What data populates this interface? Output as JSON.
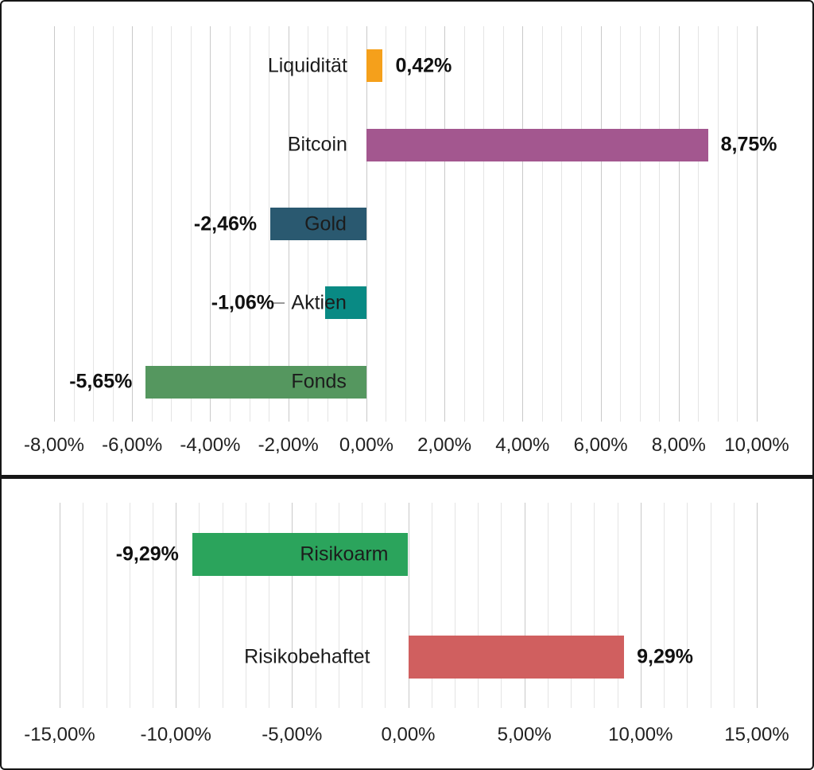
{
  "page": {
    "background": "#FFFFFF",
    "panel_border_color": "#161616",
    "gridline_minor_color": "#E4E4E4",
    "gridline_major_color": "#C9C9C9"
  },
  "chart_data": [
    {
      "type": "bar",
      "orientation": "horizontal",
      "title": "",
      "categories": [
        "Liquidität",
        "Bitcoin",
        "Gold",
        "Aktien",
        "Fonds"
      ],
      "values": [
        0.42,
        8.75,
        -2.46,
        -1.06,
        -5.65
      ],
      "value_labels": [
        "0,42%",
        "8,75%",
        "-2,46%",
        "-1,06%",
        "-5,65%"
      ],
      "bar_colors": [
        "#F5A01B",
        "#A3578F",
        "#2A5970",
        "#098A84",
        "#55975F"
      ],
      "xlim": [
        -8,
        10
      ],
      "x_tick_labels": [
        "-8,00%",
        "-6,00%",
        "-4,00%",
        "-2,00%",
        "0,00%",
        "2,00%",
        "4,00%",
        "6,00%",
        "8,00%",
        "10,00%"
      ],
      "x_major_step": 2,
      "x_minor_step": 0.5,
      "grid": true,
      "legend": false
    },
    {
      "type": "bar",
      "orientation": "horizontal",
      "title": "",
      "categories": [
        "Risikoarm",
        "Risikobehaftet"
      ],
      "values": [
        -9.29,
        9.29
      ],
      "value_labels": [
        "-9,29%",
        "9,29%"
      ],
      "bar_colors": [
        "#2BA45C",
        "#D05F5F"
      ],
      "xlim": [
        -15,
        15
      ],
      "x_tick_labels": [
        "-15,00%",
        "-10,00%",
        "-5,00%",
        "0,00%",
        "5,00%",
        "10,00%",
        "15,00%"
      ],
      "x_major_step": 5,
      "x_minor_step": 1,
      "grid": true,
      "legend": false
    }
  ]
}
